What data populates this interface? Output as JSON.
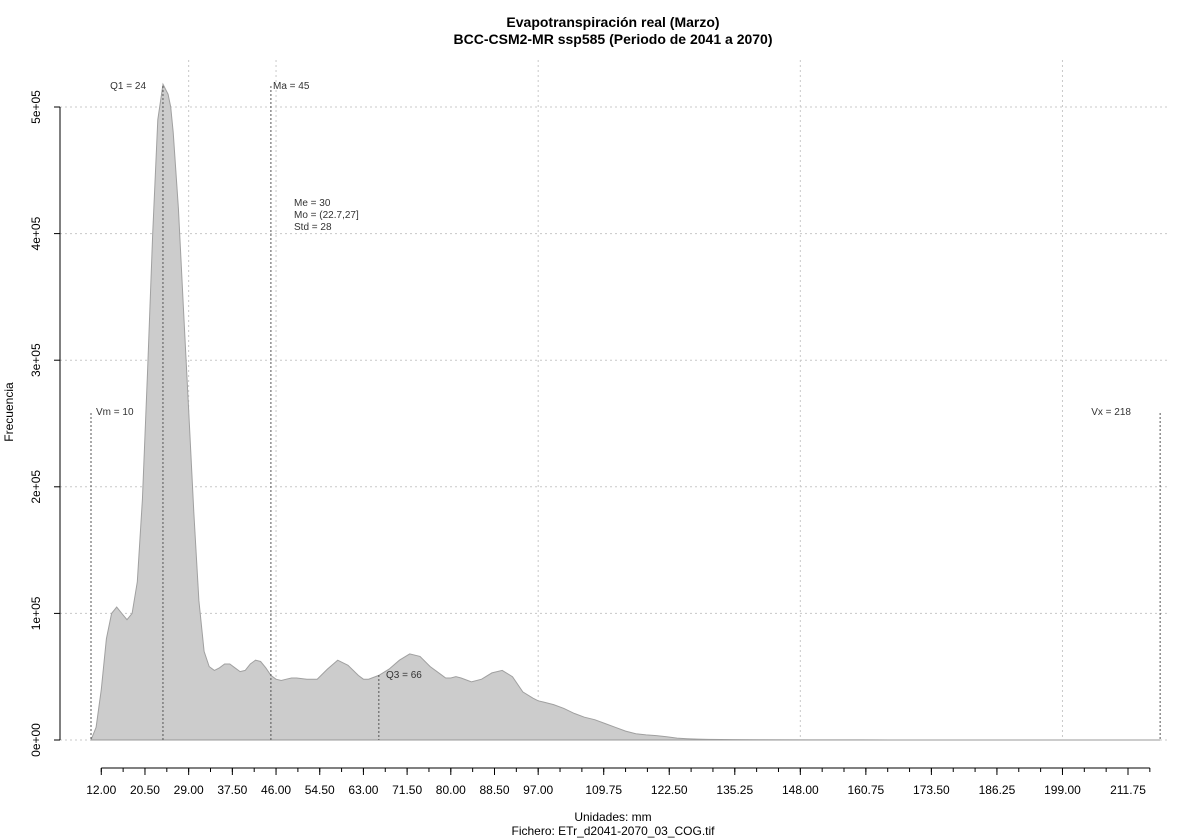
{
  "chart_data": {
    "type": "area",
    "title": "Evapotranspiración real (Marzo)",
    "subtitle": "BCC-CSM2-MR ssp585 (Periodo de 2041 a 2070)",
    "xlabel": "Unidades: mm",
    "ylabel": "Frecuencia",
    "caption": "Fichero: ETr_d2041-2070_03_COG.tif",
    "xlim": [
      5,
      225
    ],
    "ylim": [
      0,
      520000
    ],
    "x_ticks_major": [
      12.0,
      20.5,
      29.0,
      37.5,
      46.0,
      54.5,
      63.0,
      71.5,
      80.0,
      88.5,
      97.0,
      109.75,
      122.5,
      135.25,
      148.0,
      160.75,
      173.5,
      186.25,
      199.0,
      211.75
    ],
    "x_tick_labels": [
      "12.00",
      "20.50",
      "29.00",
      "37.50",
      "46.00",
      "54.50",
      "63.00",
      "71.50",
      "80.00",
      "88.50",
      "97.00",
      "109.75",
      "122.50",
      "135.25",
      "148.00",
      "160.75",
      "173.50",
      "186.25",
      "199.00",
      "211.75"
    ],
    "y_ticks": [
      0,
      100000,
      200000,
      300000,
      400000,
      500000
    ],
    "y_tick_labels": [
      "0e+00",
      "1e+05",
      "2e+05",
      "3e+05",
      "4e+05",
      "5e+05"
    ],
    "grid": true,
    "series": [
      {
        "x": [
          10,
          11,
          12,
          13,
          14,
          15,
          16,
          17,
          18,
          19,
          20,
          21,
          22,
          23,
          24,
          25,
          25.5,
          26,
          27,
          28,
          29,
          30,
          31,
          32,
          33,
          34,
          35,
          36,
          37,
          38,
          39,
          40,
          41,
          42,
          43,
          44,
          45,
          46,
          47,
          48,
          49,
          50,
          52,
          54,
          56,
          58,
          60,
          62,
          63,
          64,
          66,
          68,
          70,
          72,
          74,
          76,
          78,
          79,
          80,
          81,
          82,
          84,
          86,
          88,
          90,
          92,
          94,
          96,
          97,
          98,
          100,
          102,
          104,
          106,
          108,
          110,
          112,
          114,
          116,
          118,
          120,
          122,
          124,
          126,
          128,
          130,
          135,
          140,
          150,
          160,
          170,
          180,
          190,
          200,
          210,
          216
        ],
        "y": [
          0,
          10000,
          40000,
          80000,
          100000,
          105000,
          100000,
          95000,
          100000,
          125000,
          190000,
          290000,
          400000,
          490000,
          518000,
          510000,
          500000,
          480000,
          420000,
          340000,
          260000,
          180000,
          110000,
          70000,
          58000,
          55000,
          57000,
          60000,
          60000,
          57000,
          54000,
          55000,
          60000,
          63000,
          62000,
          57000,
          51000,
          48000,
          47000,
          48000,
          49000,
          49000,
          48000,
          48000,
          56000,
          63000,
          59000,
          51000,
          48000,
          48000,
          51000,
          56000,
          63000,
          68000,
          66000,
          58000,
          52000,
          49000,
          49000,
          50000,
          49000,
          46000,
          48000,
          53000,
          55000,
          50000,
          38000,
          33000,
          31000,
          30000,
          28000,
          25000,
          21000,
          18000,
          16000,
          13000,
          10000,
          7000,
          5000,
          4000,
          3500,
          2500,
          1500,
          1000,
          700,
          500,
          300,
          200,
          100,
          50,
          30,
          20,
          10,
          5,
          2,
          0
        ]
      }
    ],
    "annotations": [
      {
        "label": "Vm = 10",
        "x": 10
      },
      {
        "label": "Q1 = 24",
        "x": 24
      },
      {
        "label": "Ma = 45",
        "x": 45
      },
      {
        "label": "Q3 = 66",
        "x": 66
      },
      {
        "label": "Vx = 218",
        "x": 218
      }
    ],
    "stats_text": [
      "Me = 30",
      "Mo = (22.7,27]",
      "Std = 28"
    ],
    "fill_color": "#cccccc",
    "line_color": "#a0a0a0"
  }
}
